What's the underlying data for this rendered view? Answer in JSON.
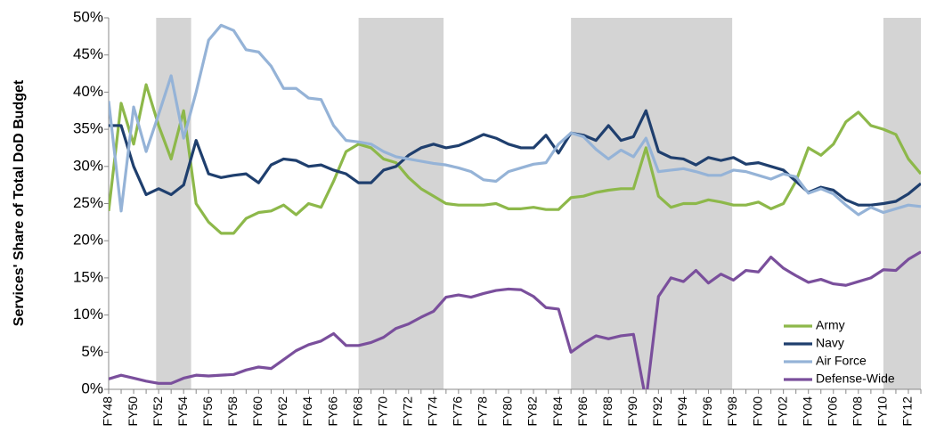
{
  "chart_data": {
    "type": "line",
    "y_label": "Services' Share of Total DoD Budget",
    "categories": [
      "FY48",
      null,
      "FY50",
      null,
      "FY52",
      null,
      "FY54",
      null,
      "FY56",
      null,
      "FY58",
      null,
      "FY60",
      null,
      "FY62",
      null,
      "FY64",
      null,
      "FY66",
      null,
      "FY68",
      null,
      "FY70",
      null,
      "FY72",
      null,
      "FY74",
      null,
      "FY76",
      null,
      "FY78",
      null,
      "FY80",
      null,
      "FY82",
      null,
      "FY84",
      null,
      "FY86",
      null,
      "FY88",
      null,
      "FY90",
      null,
      "FY92",
      null,
      "FY94",
      null,
      "FY96",
      null,
      "FY98",
      null,
      "FY00",
      null,
      "FY02",
      null,
      "FY04",
      null,
      "FY06",
      null,
      "FY08",
      null,
      "FY10",
      null,
      "FY12",
      null
    ],
    "series": [
      {
        "name": "Army",
        "color": "#8db84a",
        "values": [
          24,
          38.5,
          33,
          41,
          35.5,
          31,
          37.5,
          25,
          22.5,
          21,
          21,
          23,
          23.8,
          24,
          24.8,
          23.5,
          25,
          24.5,
          28,
          32,
          33,
          32.5,
          31,
          30.5,
          28.5,
          27,
          26,
          25,
          24.8,
          24.8,
          24.8,
          25,
          24.3,
          24.3,
          24.5,
          24.2,
          24.2,
          25.8,
          26,
          26.5,
          26.8,
          27,
          27,
          32.5,
          26,
          24.5,
          25,
          25,
          25.5,
          25.2,
          24.8,
          24.8,
          25.2,
          24.3,
          25,
          28,
          32.5,
          31.5,
          33,
          36,
          37.3,
          35.5,
          35,
          34.3,
          31,
          29
        ]
      },
      {
        "name": "Navy",
        "color": "#1f3f6e",
        "values": [
          35.5,
          35.5,
          30,
          26.2,
          27,
          26.2,
          27.5,
          33.5,
          29,
          28.5,
          28.8,
          29,
          27.8,
          30.2,
          31,
          30.8,
          30,
          30.2,
          29.5,
          29,
          27.8,
          27.8,
          29.5,
          30,
          31.5,
          32.5,
          33,
          32.5,
          32.8,
          33.5,
          34.3,
          33.8,
          33,
          32.5,
          32.5,
          34.2,
          31.8,
          34.5,
          34.2,
          33.5,
          35.5,
          33.5,
          34,
          37.5,
          32,
          31.2,
          31,
          30.2,
          31.2,
          30.8,
          31.2,
          30.3,
          30.5,
          30,
          29.5,
          28,
          26.5,
          27.2,
          26.8,
          25.5,
          24.8,
          24.8,
          25,
          25.3,
          26.3,
          27.7
        ]
      },
      {
        "name": "Air Force",
        "color": "#95b3d7",
        "values": [
          38.8,
          24,
          38,
          32,
          37,
          42.2,
          33.8,
          40,
          47,
          49,
          48.3,
          45.7,
          45.4,
          43.5,
          40.5,
          40.5,
          39.2,
          39,
          35.5,
          33.5,
          33.3,
          33,
          32,
          31.3,
          31,
          30.7,
          30.4,
          30.2,
          29.8,
          29.3,
          28.2,
          28,
          29.3,
          29.8,
          30.3,
          30.5,
          33,
          34.5,
          34,
          32.3,
          31,
          32.2,
          31.3,
          33.8,
          29.3,
          29.5,
          29.7,
          29.3,
          28.8,
          28.8,
          29.5,
          29.3,
          28.8,
          28.3,
          29,
          28.6,
          26.4,
          27,
          26.3,
          24.8,
          23.5,
          24.5,
          23.8,
          24.3,
          24.8,
          24.6
        ]
      },
      {
        "name": "Defense-Wide",
        "color": "#7a4f9c",
        "values": [
          1.4,
          1.9,
          1.5,
          1.1,
          0.8,
          0.8,
          1.5,
          1.9,
          1.8,
          1.9,
          2.0,
          2.6,
          3.0,
          2.8,
          4.0,
          5.2,
          6.0,
          6.5,
          7.5,
          5.9,
          5.9,
          6.3,
          7.0,
          8.2,
          8.8,
          9.7,
          10.5,
          12.4,
          12.7,
          12.4,
          12.9,
          13.3,
          13.5,
          13.4,
          12.5,
          11.0,
          10.8,
          5.0,
          6.2,
          7.2,
          6.8,
          7.2,
          7.4,
          -1.5,
          12.5,
          15,
          14.5,
          16,
          14.3,
          15.5,
          14.7,
          16,
          15.8,
          17.8,
          16.3,
          15.3,
          14.4,
          14.8,
          14.2,
          14,
          14.5,
          15,
          16.1,
          16,
          17.5,
          18.5
        ]
      }
    ],
    "ylim": [
      0,
      50
    ],
    "yticks": [
      {
        "value": 0,
        "label": "0%"
      },
      {
        "value": 5,
        "label": "5%"
      },
      {
        "value": 10,
        "label": "10%"
      },
      {
        "value": 15,
        "label": "15%"
      },
      {
        "value": 20,
        "label": "20%"
      },
      {
        "value": 25,
        "label": "25%"
      },
      {
        "value": 30,
        "label": "30%"
      },
      {
        "value": 35,
        "label": "35%"
      },
      {
        "value": 40,
        "label": "40%"
      },
      {
        "value": 45,
        "label": "45%"
      },
      {
        "value": 50,
        "label": "50%"
      }
    ],
    "shaded_spans": [
      [
        3.8,
        6.6
      ],
      [
        20,
        26.8
      ],
      [
        37,
        49.9
      ],
      [
        62,
        65
      ]
    ],
    "shade_color": "#d4d4d4",
    "legend": "lower right"
  }
}
